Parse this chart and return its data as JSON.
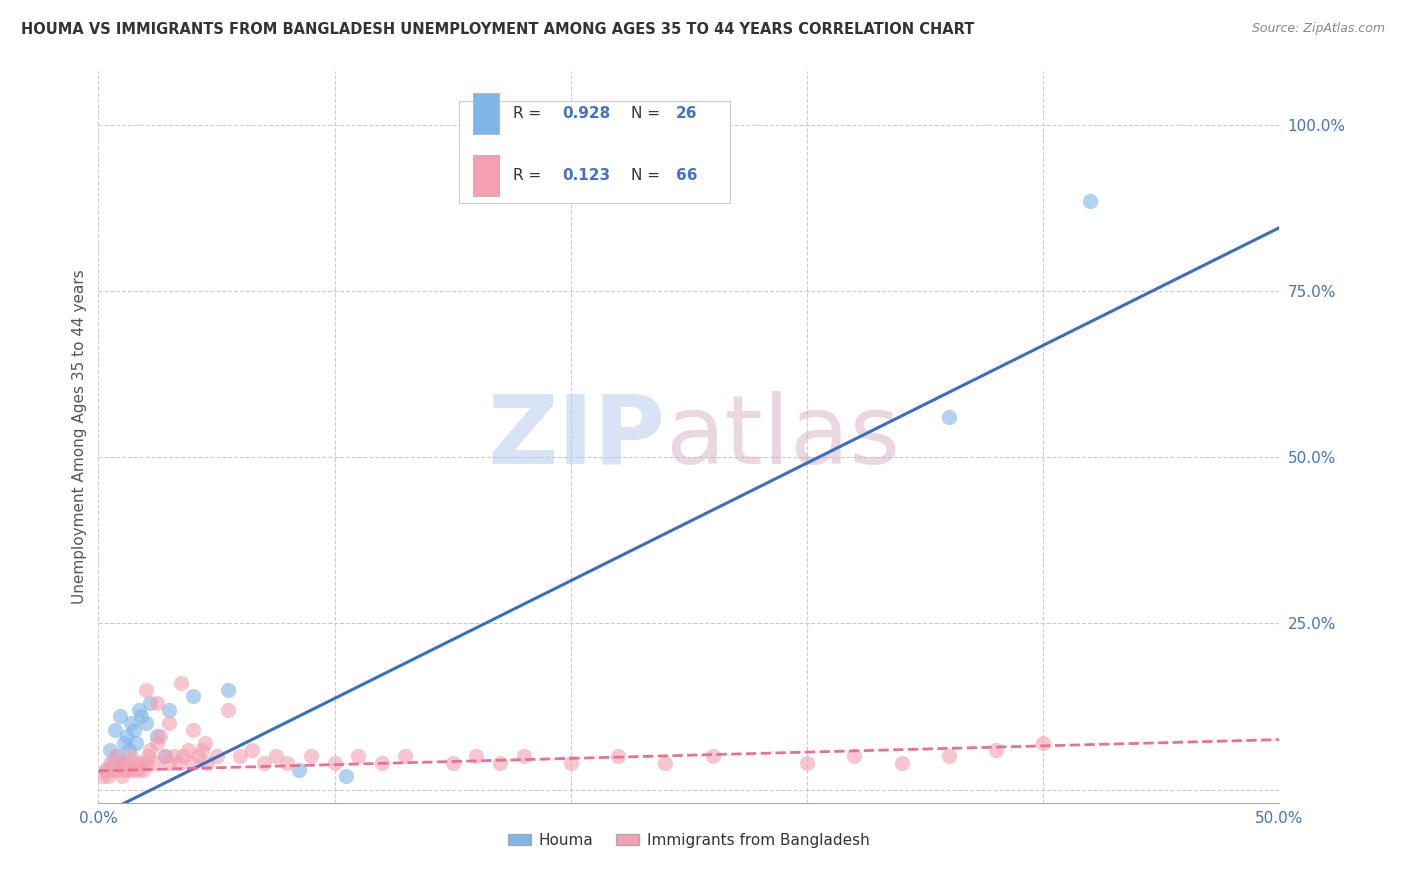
{
  "title": "HOUMA VS IMMIGRANTS FROM BANGLADESH UNEMPLOYMENT AMONG AGES 35 TO 44 YEARS CORRELATION CHART",
  "source": "Source: ZipAtlas.com",
  "ylabel": "Unemployment Among Ages 35 to 44 years",
  "xlim": [
    0.0,
    0.5
  ],
  "ylim": [
    -0.02,
    1.08
  ],
  "xticks": [
    0.0,
    0.1,
    0.2,
    0.3,
    0.4,
    0.5
  ],
  "yticks": [
    0.0,
    0.25,
    0.5,
    0.75,
    1.0
  ],
  "ytick_labels": [
    "",
    "25.0%",
    "50.0%",
    "75.0%",
    "100.0%"
  ],
  "xtick_labels": [
    "0.0%",
    "",
    "",
    "",
    "",
    "50.0%"
  ],
  "houma_R": 0.928,
  "houma_N": 26,
  "bangladesh_R": 0.123,
  "bangladesh_N": 66,
  "houma_color": "#7EB6E8",
  "bangladesh_color": "#F4A0B0",
  "houma_line_color": "#3A6FBF",
  "bangladesh_line_color": "#E87090",
  "grid_color": "#CCCCCC",
  "tick_color": "#4472C4",
  "background_color": "#FFFFFF",
  "title_color": "#333333",
  "houma_scatter_x": [
    0.003,
    0.005,
    0.006,
    0.007,
    0.008,
    0.009,
    0.01,
    0.011,
    0.012,
    0.013,
    0.014,
    0.015,
    0.016,
    0.017,
    0.018,
    0.02,
    0.022,
    0.025,
    0.028,
    0.03,
    0.04,
    0.055,
    0.085,
    0.105,
    0.36,
    0.42
  ],
  "houma_scatter_y": [
    0.03,
    0.06,
    0.04,
    0.09,
    0.05,
    0.11,
    0.04,
    0.07,
    0.08,
    0.06,
    0.1,
    0.09,
    0.07,
    0.12,
    0.11,
    0.1,
    0.13,
    0.08,
    0.05,
    0.12,
    0.14,
    0.15,
    0.03,
    0.02,
    0.56,
    0.885
  ],
  "bangladesh_scatter_x": [
    0.002,
    0.003,
    0.004,
    0.005,
    0.006,
    0.007,
    0.008,
    0.009,
    0.01,
    0.011,
    0.012,
    0.013,
    0.014,
    0.015,
    0.016,
    0.017,
    0.018,
    0.019,
    0.02,
    0.021,
    0.022,
    0.024,
    0.025,
    0.026,
    0.028,
    0.03,
    0.032,
    0.034,
    0.036,
    0.038,
    0.04,
    0.042,
    0.044,
    0.046,
    0.05,
    0.055,
    0.06,
    0.065,
    0.07,
    0.075,
    0.08,
    0.09,
    0.1,
    0.11,
    0.12,
    0.13,
    0.15,
    0.16,
    0.17,
    0.18,
    0.2,
    0.22,
    0.24,
    0.26,
    0.3,
    0.32,
    0.34,
    0.36,
    0.38,
    0.4,
    0.02,
    0.025,
    0.03,
    0.035,
    0.04,
    0.045
  ],
  "bangladesh_scatter_y": [
    0.02,
    0.03,
    0.02,
    0.04,
    0.03,
    0.05,
    0.03,
    0.04,
    0.02,
    0.03,
    0.04,
    0.03,
    0.05,
    0.03,
    0.04,
    0.03,
    0.04,
    0.03,
    0.04,
    0.05,
    0.06,
    0.04,
    0.07,
    0.08,
    0.05,
    0.04,
    0.05,
    0.04,
    0.05,
    0.06,
    0.04,
    0.05,
    0.06,
    0.04,
    0.05,
    0.12,
    0.05,
    0.06,
    0.04,
    0.05,
    0.04,
    0.05,
    0.04,
    0.05,
    0.04,
    0.05,
    0.04,
    0.05,
    0.04,
    0.05,
    0.04,
    0.05,
    0.04,
    0.05,
    0.04,
    0.05,
    0.04,
    0.05,
    0.06,
    0.07,
    0.15,
    0.13,
    0.1,
    0.16,
    0.09,
    0.07
  ],
  "houma_trendline": [
    0.0,
    -0.04,
    0.5,
    0.845
  ],
  "bangladesh_trendline": [
    0.0,
    0.028,
    0.5,
    0.075
  ]
}
